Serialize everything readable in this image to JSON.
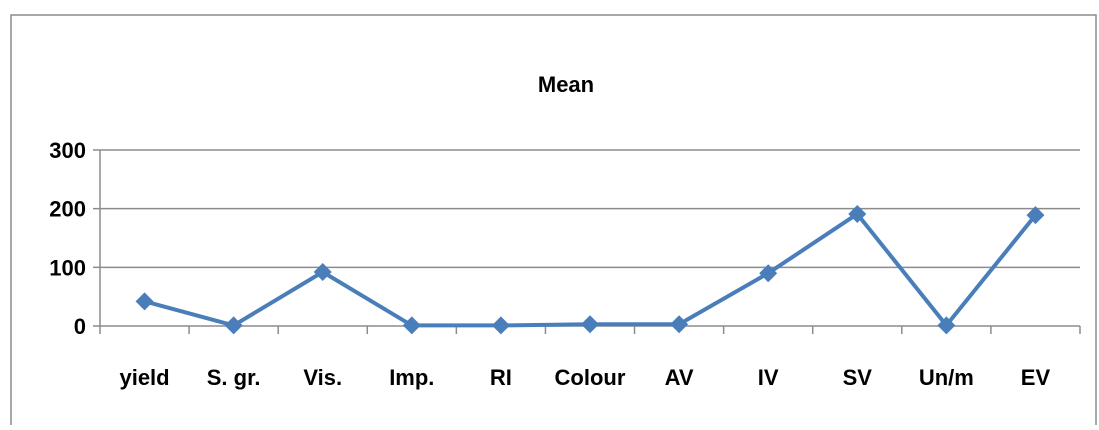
{
  "chart_data": {
    "type": "line",
    "title": "Mean",
    "xlabel": "",
    "ylabel": "",
    "categories": [
      "yield",
      "S. gr.",
      "Vis.",
      "Imp.",
      "RI",
      "Colour",
      "AV",
      "IV",
      "SV",
      "Un/m",
      "EV"
    ],
    "series": [
      {
        "values": [
          42,
          1,
          92,
          1,
          1,
          3,
          3,
          90,
          191,
          1,
          189
        ]
      }
    ],
    "ylim": [
      0,
      300
    ],
    "yticks": [
      0,
      100,
      200,
      300
    ],
    "grid": true,
    "legend": "none",
    "marker": "diamond",
    "colors": {
      "series": "#4a7ebb",
      "gridline": "#8c8c8c",
      "axis": "#8c8c8c",
      "frame": "#8c8c8c",
      "text": "#000000"
    }
  }
}
